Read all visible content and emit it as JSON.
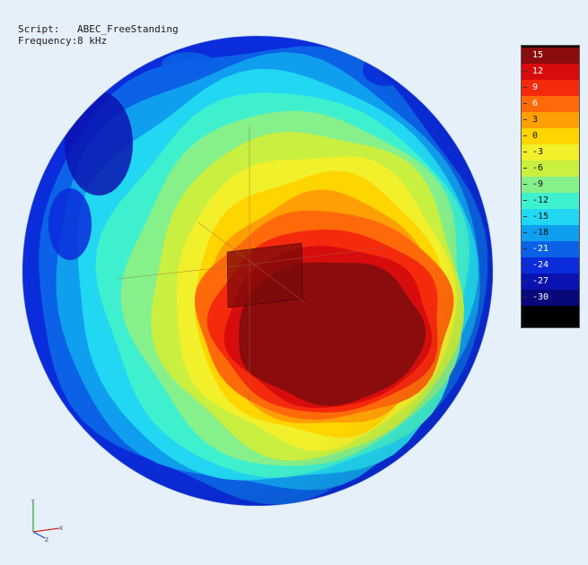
{
  "info": {
    "script_label": "Script:",
    "script_value": "ABEC_FreeStanding",
    "frequency_label": "Frequency:",
    "frequency_value": "8 kHz"
  },
  "legend": {
    "levels": [
      {
        "label": "15",
        "color": "#8b0c0c",
        "text_color": "#ffffff"
      },
      {
        "label": "12",
        "color": "#d70d0d",
        "text_color": "#ffffff"
      },
      {
        "label": "9",
        "color": "#f52a0d",
        "text_color": "#ffffff"
      },
      {
        "label": "6",
        "color": "#fe6a0a",
        "text_color": "#ffffff"
      },
      {
        "label": "3",
        "color": "#ff9f06",
        "text_color": "#111111"
      },
      {
        "label": "0",
        "color": "#ffd500",
        "text_color": "#111111"
      },
      {
        "label": "-3",
        "color": "#f2ef2b",
        "text_color": "#111111"
      },
      {
        "label": "-6",
        "color": "#c9f040",
        "text_color": "#111111"
      },
      {
        "label": "-9",
        "color": "#86f08a",
        "text_color": "#111111"
      },
      {
        "label": "-12",
        "color": "#3ff0cf",
        "text_color": "#111111"
      },
      {
        "label": "-15",
        "color": "#21d7f1",
        "text_color": "#111111"
      },
      {
        "label": "-18",
        "color": "#109fee",
        "text_color": "#111111"
      },
      {
        "label": "-21",
        "color": "#0b62e6",
        "text_color": "#ffffff"
      },
      {
        "label": "-24",
        "color": "#0a2cdb",
        "text_color": "#ffffff"
      },
      {
        "label": "-27",
        "color": "#0a13b0",
        "text_color": "#ffffff"
      },
      {
        "label": "-30",
        "color": "#07087a",
        "text_color": "#ffffff"
      }
    ]
  },
  "axes": {
    "y": "Y",
    "x": "X",
    "z": "Z"
  }
}
